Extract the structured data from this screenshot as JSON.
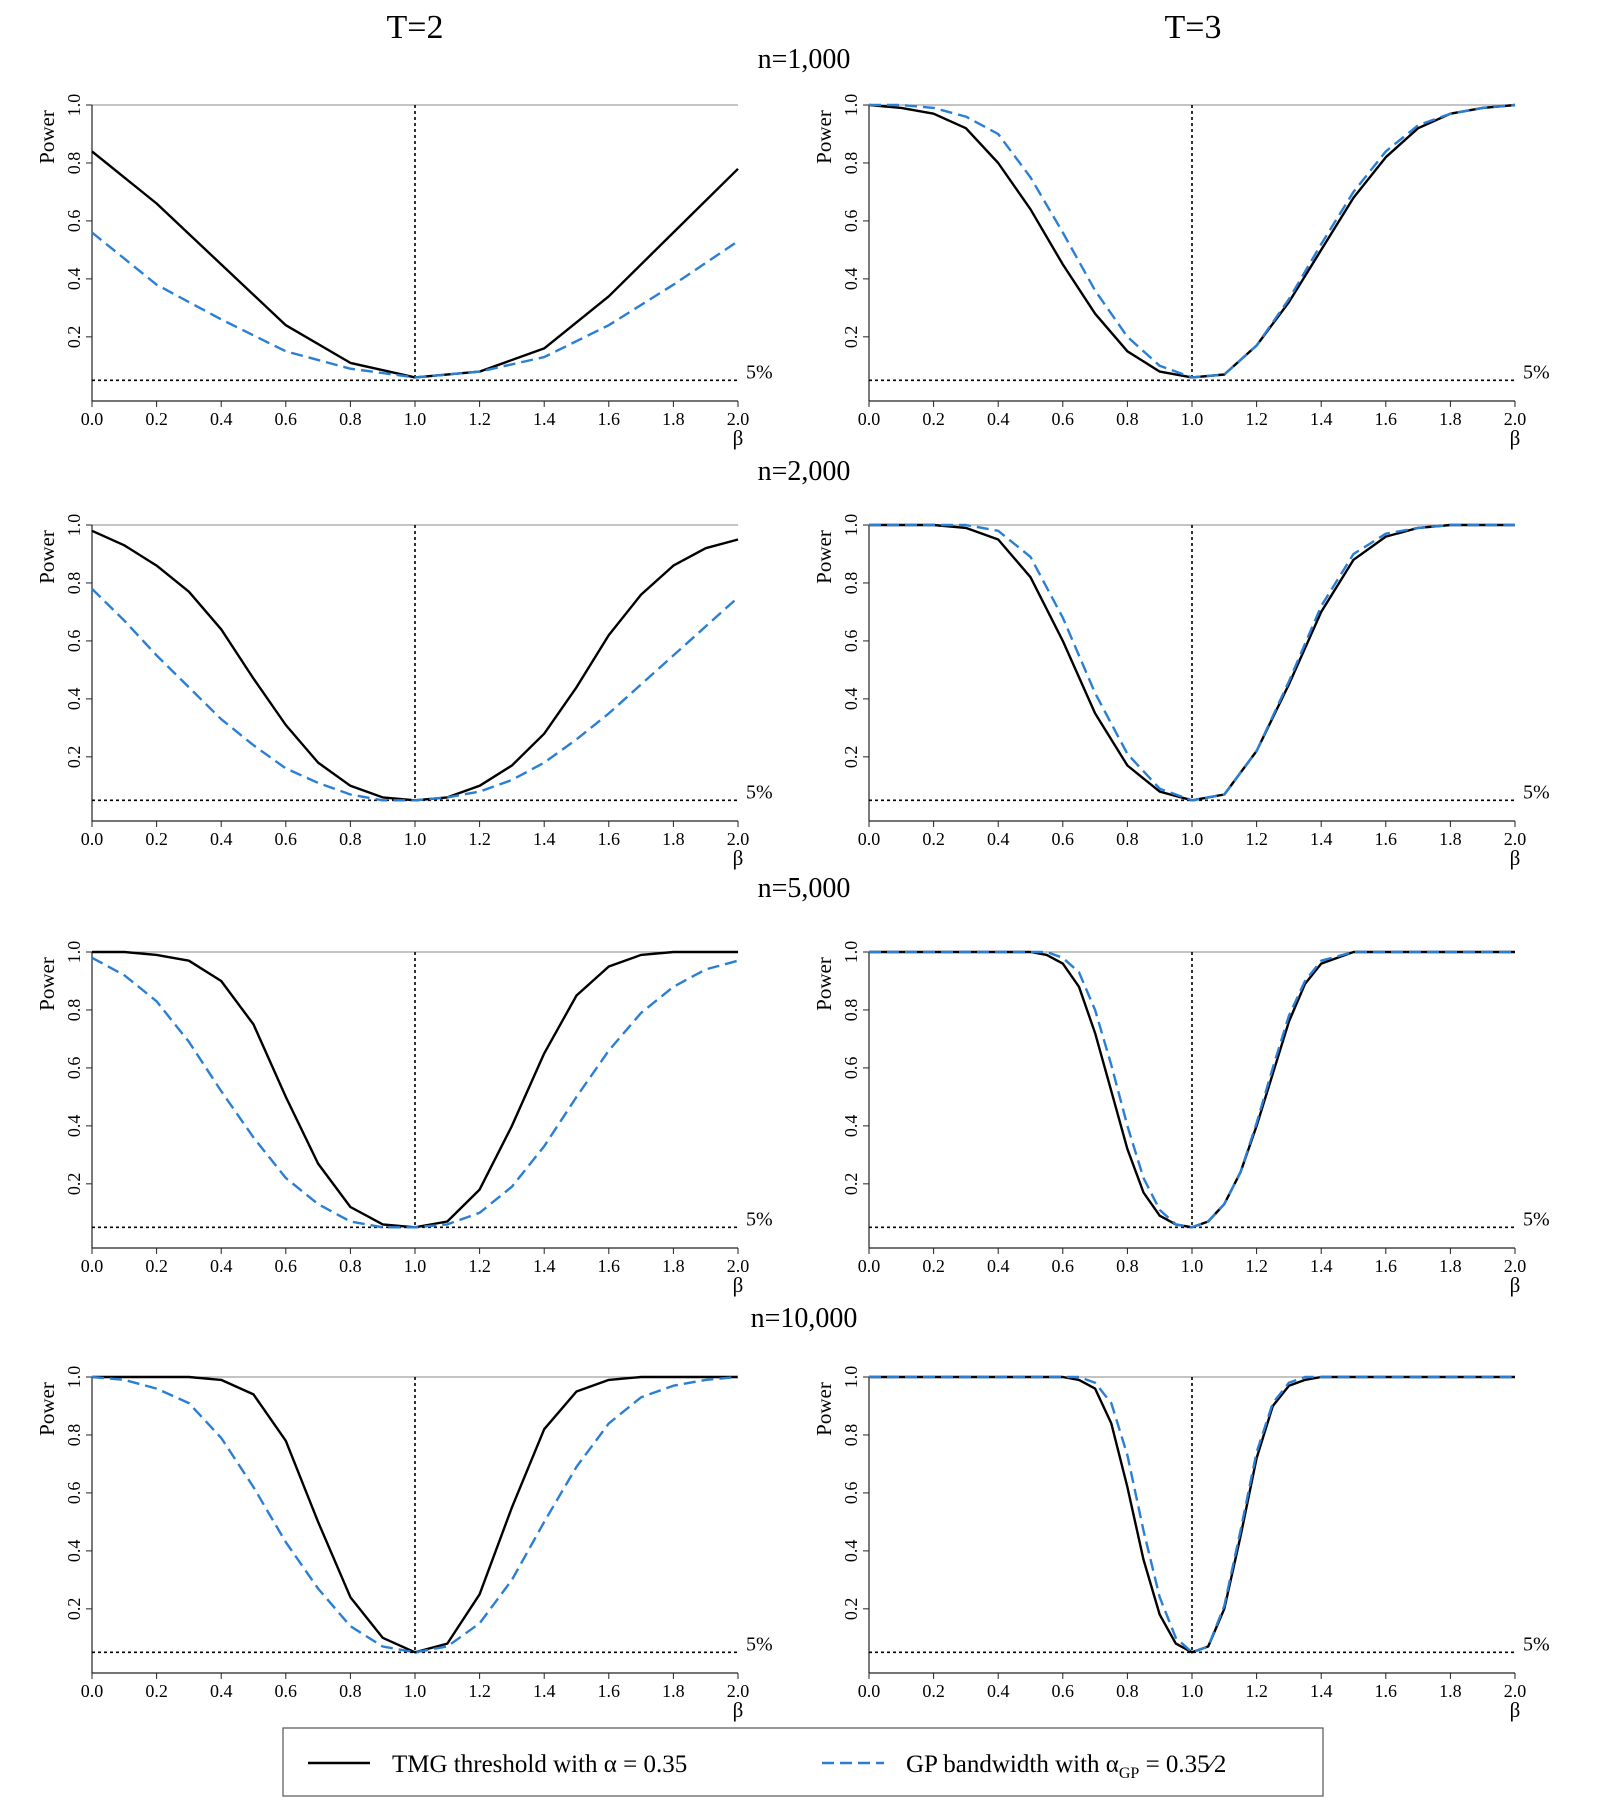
{
  "columns": [
    "T=2",
    "T=3"
  ],
  "rows": [
    "n=1,000",
    "n=2,000",
    "n=5,000",
    "n=10,000"
  ],
  "legend": {
    "tmg_label": "TMG threshold with α = 0.35",
    "gp_label_prefix": "GP bandwidth with α",
    "gp_label_sub": "GP",
    "gp_label_suffix": " = 0.35∕2"
  },
  "colors": {
    "tmg": "#000000",
    "gp": "#2a7fd4",
    "reference": "#000000"
  },
  "chart_data": [
    {
      "type": "line",
      "panel": "T=2, n=1,000",
      "xlabel": "β",
      "ylabel": "Power",
      "xlim": [
        0,
        2
      ],
      "ylim": [
        0.02,
        1.0
      ],
      "xticks": [
        "0.0",
        "0.2",
        "0.4",
        "0.6",
        "0.8",
        "1.0",
        "1.2",
        "1.4",
        "1.6",
        "1.8",
        "2.0"
      ],
      "yticks": [
        "0.2",
        "0.4",
        "0.6",
        "0.8",
        "1.0"
      ],
      "hline": 0.05,
      "hline_label": "5%",
      "vline": 1.0,
      "x": [
        0.0,
        0.2,
        0.4,
        0.6,
        0.8,
        1.0,
        1.2,
        1.4,
        1.6,
        1.8,
        2.0
      ],
      "series": [
        {
          "name": "TMG threshold with α = 0.35",
          "style": "solid",
          "values": [
            0.84,
            0.66,
            0.45,
            0.24,
            0.11,
            0.06,
            0.08,
            0.16,
            0.34,
            0.56,
            0.78
          ]
        },
        {
          "name": "GP bandwidth with αGP = 0.35/2",
          "style": "dashed",
          "values": [
            0.56,
            0.38,
            0.26,
            0.15,
            0.09,
            0.06,
            0.08,
            0.13,
            0.24,
            0.38,
            0.53
          ]
        }
      ]
    },
    {
      "type": "line",
      "panel": "T=3, n=1,000",
      "xlabel": "β",
      "ylabel": "Power",
      "xlim": [
        0,
        2
      ],
      "ylim": [
        0.02,
        1.0
      ],
      "xticks": [
        "0.0",
        "0.2",
        "0.4",
        "0.6",
        "0.8",
        "1.0",
        "1.2",
        "1.4",
        "1.6",
        "1.8",
        "2.0"
      ],
      "yticks": [
        "0.2",
        "0.4",
        "0.6",
        "0.8",
        "1.0"
      ],
      "hline": 0.05,
      "hline_label": "5%",
      "vline": 1.0,
      "x": [
        0.0,
        0.1,
        0.2,
        0.3,
        0.4,
        0.5,
        0.6,
        0.7,
        0.8,
        0.9,
        1.0,
        1.1,
        1.2,
        1.3,
        1.4,
        1.5,
        1.6,
        1.7,
        1.8,
        1.9,
        2.0
      ],
      "series": [
        {
          "name": "TMG threshold with α = 0.35",
          "style": "solid",
          "values": [
            1.0,
            0.99,
            0.97,
            0.92,
            0.8,
            0.64,
            0.45,
            0.28,
            0.15,
            0.08,
            0.06,
            0.07,
            0.17,
            0.32,
            0.5,
            0.68,
            0.82,
            0.92,
            0.97,
            0.99,
            1.0
          ]
        },
        {
          "name": "GP bandwidth with αGP = 0.35/2",
          "style": "dashed",
          "values": [
            1.0,
            1.0,
            0.99,
            0.96,
            0.9,
            0.75,
            0.56,
            0.36,
            0.2,
            0.1,
            0.06,
            0.07,
            0.17,
            0.33,
            0.52,
            0.7,
            0.84,
            0.93,
            0.97,
            0.99,
            1.0
          ]
        }
      ]
    },
    {
      "type": "line",
      "panel": "T=2, n=2,000",
      "xlabel": "β",
      "ylabel": "Power",
      "xlim": [
        0,
        2
      ],
      "ylim": [
        0.02,
        1.0
      ],
      "xticks": [
        "0.0",
        "0.2",
        "0.4",
        "0.6",
        "0.8",
        "1.0",
        "1.2",
        "1.4",
        "1.6",
        "1.8",
        "2.0"
      ],
      "yticks": [
        "0.2",
        "0.4",
        "0.6",
        "0.8",
        "1.0"
      ],
      "hline": 0.05,
      "hline_label": "5%",
      "vline": 1.0,
      "x": [
        0.0,
        0.1,
        0.2,
        0.3,
        0.4,
        0.5,
        0.6,
        0.7,
        0.8,
        0.9,
        1.0,
        1.1,
        1.2,
        1.3,
        1.4,
        1.5,
        1.6,
        1.7,
        1.8,
        1.9,
        2.0
      ],
      "series": [
        {
          "name": "TMG threshold with α = 0.35",
          "style": "solid",
          "values": [
            0.98,
            0.93,
            0.86,
            0.77,
            0.64,
            0.47,
            0.31,
            0.18,
            0.1,
            0.06,
            0.05,
            0.06,
            0.1,
            0.17,
            0.28,
            0.44,
            0.62,
            0.76,
            0.86,
            0.92,
            0.95
          ]
        },
        {
          "name": "GP bandwidth with αGP = 0.35/2",
          "style": "dashed",
          "values": [
            0.78,
            0.67,
            0.55,
            0.44,
            0.33,
            0.24,
            0.16,
            0.11,
            0.07,
            0.05,
            0.05,
            0.06,
            0.08,
            0.12,
            0.18,
            0.26,
            0.35,
            0.45,
            0.55,
            0.65,
            0.75
          ]
        }
      ]
    },
    {
      "type": "line",
      "panel": "T=3, n=2,000",
      "xlabel": "β",
      "ylabel": "Power",
      "xlim": [
        0,
        2
      ],
      "ylim": [
        0.02,
        1.0
      ],
      "xticks": [
        "0.0",
        "0.2",
        "0.4",
        "0.6",
        "0.8",
        "1.0",
        "1.2",
        "1.4",
        "1.6",
        "1.8",
        "2.0"
      ],
      "yticks": [
        "0.2",
        "0.4",
        "0.6",
        "0.8",
        "1.0"
      ],
      "hline": 0.05,
      "hline_label": "5%",
      "vline": 1.0,
      "x": [
        0.0,
        0.1,
        0.2,
        0.3,
        0.4,
        0.5,
        0.6,
        0.7,
        0.8,
        0.9,
        1.0,
        1.1,
        1.2,
        1.3,
        1.4,
        1.5,
        1.6,
        1.7,
        1.8,
        1.9,
        2.0
      ],
      "series": [
        {
          "name": "TMG threshold with α = 0.35",
          "style": "solid",
          "values": [
            1.0,
            1.0,
            1.0,
            0.99,
            0.95,
            0.82,
            0.6,
            0.35,
            0.17,
            0.08,
            0.05,
            0.07,
            0.22,
            0.45,
            0.7,
            0.88,
            0.96,
            0.99,
            1.0,
            1.0,
            1.0
          ]
        },
        {
          "name": "GP bandwidth with αGP = 0.35/2",
          "style": "dashed",
          "values": [
            1.0,
            1.0,
            1.0,
            1.0,
            0.98,
            0.89,
            0.68,
            0.42,
            0.21,
            0.09,
            0.05,
            0.07,
            0.22,
            0.46,
            0.72,
            0.9,
            0.97,
            0.99,
            1.0,
            1.0,
            1.0
          ]
        }
      ]
    },
    {
      "type": "line",
      "panel": "T=2, n=5,000",
      "xlabel": "β",
      "ylabel": "Power",
      "xlim": [
        0,
        2
      ],
      "ylim": [
        0.02,
        1.0
      ],
      "xticks": [
        "0.0",
        "0.2",
        "0.4",
        "0.6",
        "0.8",
        "1.0",
        "1.2",
        "1.4",
        "1.6",
        "1.8",
        "2.0"
      ],
      "yticks": [
        "0.2",
        "0.4",
        "0.6",
        "0.8",
        "1.0"
      ],
      "hline": 0.05,
      "hline_label": "5%",
      "vline": 1.0,
      "x": [
        0.0,
        0.1,
        0.2,
        0.3,
        0.4,
        0.5,
        0.6,
        0.7,
        0.8,
        0.9,
        1.0,
        1.1,
        1.2,
        1.3,
        1.4,
        1.5,
        1.6,
        1.7,
        1.8,
        1.9,
        2.0
      ],
      "series": [
        {
          "name": "TMG threshold with α = 0.35",
          "style": "solid",
          "values": [
            1.0,
            1.0,
            0.99,
            0.97,
            0.9,
            0.75,
            0.5,
            0.27,
            0.12,
            0.06,
            0.05,
            0.07,
            0.18,
            0.4,
            0.65,
            0.85,
            0.95,
            0.99,
            1.0,
            1.0,
            1.0
          ]
        },
        {
          "name": "GP bandwidth with αGP = 0.35/2",
          "style": "dashed",
          "values": [
            0.98,
            0.92,
            0.83,
            0.69,
            0.52,
            0.36,
            0.22,
            0.13,
            0.07,
            0.05,
            0.05,
            0.06,
            0.1,
            0.19,
            0.33,
            0.5,
            0.66,
            0.79,
            0.88,
            0.94,
            0.97
          ]
        }
      ]
    },
    {
      "type": "line",
      "panel": "T=3, n=5,000",
      "xlabel": "β",
      "ylabel": "Power",
      "xlim": [
        0,
        2
      ],
      "ylim": [
        0.02,
        1.0
      ],
      "xticks": [
        "0.0",
        "0.2",
        "0.4",
        "0.6",
        "0.8",
        "1.0",
        "1.2",
        "1.4",
        "1.6",
        "1.8",
        "2.0"
      ],
      "yticks": [
        "0.2",
        "0.4",
        "0.6",
        "0.8",
        "1.0"
      ],
      "hline": 0.05,
      "hline_label": "5%",
      "vline": 1.0,
      "x": [
        0.0,
        0.1,
        0.2,
        0.3,
        0.4,
        0.5,
        0.55,
        0.6,
        0.65,
        0.7,
        0.75,
        0.8,
        0.85,
        0.9,
        0.95,
        1.0,
        1.05,
        1.1,
        1.15,
        1.2,
        1.25,
        1.3,
        1.35,
        1.4,
        1.5,
        1.6,
        1.8,
        2.0
      ],
      "series": [
        {
          "name": "TMG threshold with α = 0.35",
          "style": "solid",
          "values": [
            1.0,
            1.0,
            1.0,
            1.0,
            1.0,
            1.0,
            0.99,
            0.96,
            0.88,
            0.72,
            0.52,
            0.32,
            0.17,
            0.09,
            0.06,
            0.05,
            0.07,
            0.13,
            0.24,
            0.4,
            0.58,
            0.76,
            0.89,
            0.96,
            1.0,
            1.0,
            1.0,
            1.0
          ]
        },
        {
          "name": "GP bandwidth with αGP = 0.35/2",
          "style": "dashed",
          "values": [
            1.0,
            1.0,
            1.0,
            1.0,
            1.0,
            1.0,
            1.0,
            0.98,
            0.93,
            0.8,
            0.61,
            0.4,
            0.22,
            0.11,
            0.06,
            0.05,
            0.07,
            0.13,
            0.24,
            0.41,
            0.6,
            0.78,
            0.9,
            0.97,
            1.0,
            1.0,
            1.0,
            1.0
          ]
        }
      ]
    },
    {
      "type": "line",
      "panel": "T=2, n=10,000",
      "xlabel": "β",
      "ylabel": "Power",
      "xlim": [
        0,
        2
      ],
      "ylim": [
        0.02,
        1.0
      ],
      "xticks": [
        "0.0",
        "0.2",
        "0.4",
        "0.6",
        "0.8",
        "1.0",
        "1.2",
        "1.4",
        "1.6",
        "1.8",
        "2.0"
      ],
      "yticks": [
        "0.2",
        "0.4",
        "0.6",
        "0.8",
        "1.0"
      ],
      "hline": 0.05,
      "hline_label": "5%",
      "vline": 1.0,
      "x": [
        0.0,
        0.1,
        0.2,
        0.3,
        0.4,
        0.5,
        0.6,
        0.7,
        0.8,
        0.9,
        1.0,
        1.1,
        1.2,
        1.3,
        1.4,
        1.5,
        1.6,
        1.7,
        1.8,
        1.9,
        2.0
      ],
      "series": [
        {
          "name": "TMG threshold with α = 0.35",
          "style": "solid",
          "values": [
            1.0,
            1.0,
            1.0,
            1.0,
            0.99,
            0.94,
            0.78,
            0.5,
            0.24,
            0.1,
            0.05,
            0.08,
            0.25,
            0.55,
            0.82,
            0.95,
            0.99,
            1.0,
            1.0,
            1.0,
            1.0
          ]
        },
        {
          "name": "GP bandwidth with αGP = 0.35/2",
          "style": "dashed",
          "values": [
            1.0,
            0.99,
            0.96,
            0.91,
            0.79,
            0.62,
            0.43,
            0.27,
            0.14,
            0.07,
            0.05,
            0.07,
            0.15,
            0.3,
            0.5,
            0.69,
            0.84,
            0.93,
            0.97,
            0.99,
            1.0
          ]
        }
      ]
    },
    {
      "type": "line",
      "panel": "T=3, n=10,000",
      "xlabel": "β",
      "ylabel": "Power",
      "xlim": [
        0,
        2
      ],
      "ylim": [
        0.02,
        1.0
      ],
      "xticks": [
        "0.0",
        "0.2",
        "0.4",
        "0.6",
        "0.8",
        "1.0",
        "1.2",
        "1.4",
        "1.6",
        "1.8",
        "2.0"
      ],
      "yticks": [
        "0.2",
        "0.4",
        "0.6",
        "0.8",
        "1.0"
      ],
      "hline": 0.05,
      "hline_label": "5%",
      "vline": 1.0,
      "x": [
        0.0,
        0.2,
        0.4,
        0.6,
        0.65,
        0.7,
        0.75,
        0.8,
        0.85,
        0.9,
        0.95,
        1.0,
        1.05,
        1.1,
        1.15,
        1.2,
        1.25,
        1.3,
        1.35,
        1.4,
        1.5,
        1.6,
        1.8,
        2.0
      ],
      "series": [
        {
          "name": "TMG threshold with α = 0.35",
          "style": "solid",
          "values": [
            1.0,
            1.0,
            1.0,
            1.0,
            0.99,
            0.96,
            0.84,
            0.62,
            0.37,
            0.18,
            0.08,
            0.05,
            0.07,
            0.2,
            0.45,
            0.72,
            0.9,
            0.97,
            0.99,
            1.0,
            1.0,
            1.0,
            1.0,
            1.0
          ]
        },
        {
          "name": "GP bandwidth with αGP = 0.35/2",
          "style": "dashed",
          "values": [
            1.0,
            1.0,
            1.0,
            1.0,
            1.0,
            0.98,
            0.91,
            0.73,
            0.47,
            0.24,
            0.1,
            0.05,
            0.07,
            0.21,
            0.47,
            0.74,
            0.91,
            0.98,
            1.0,
            1.0,
            1.0,
            1.0,
            1.0,
            1.0
          ]
        }
      ]
    }
  ]
}
